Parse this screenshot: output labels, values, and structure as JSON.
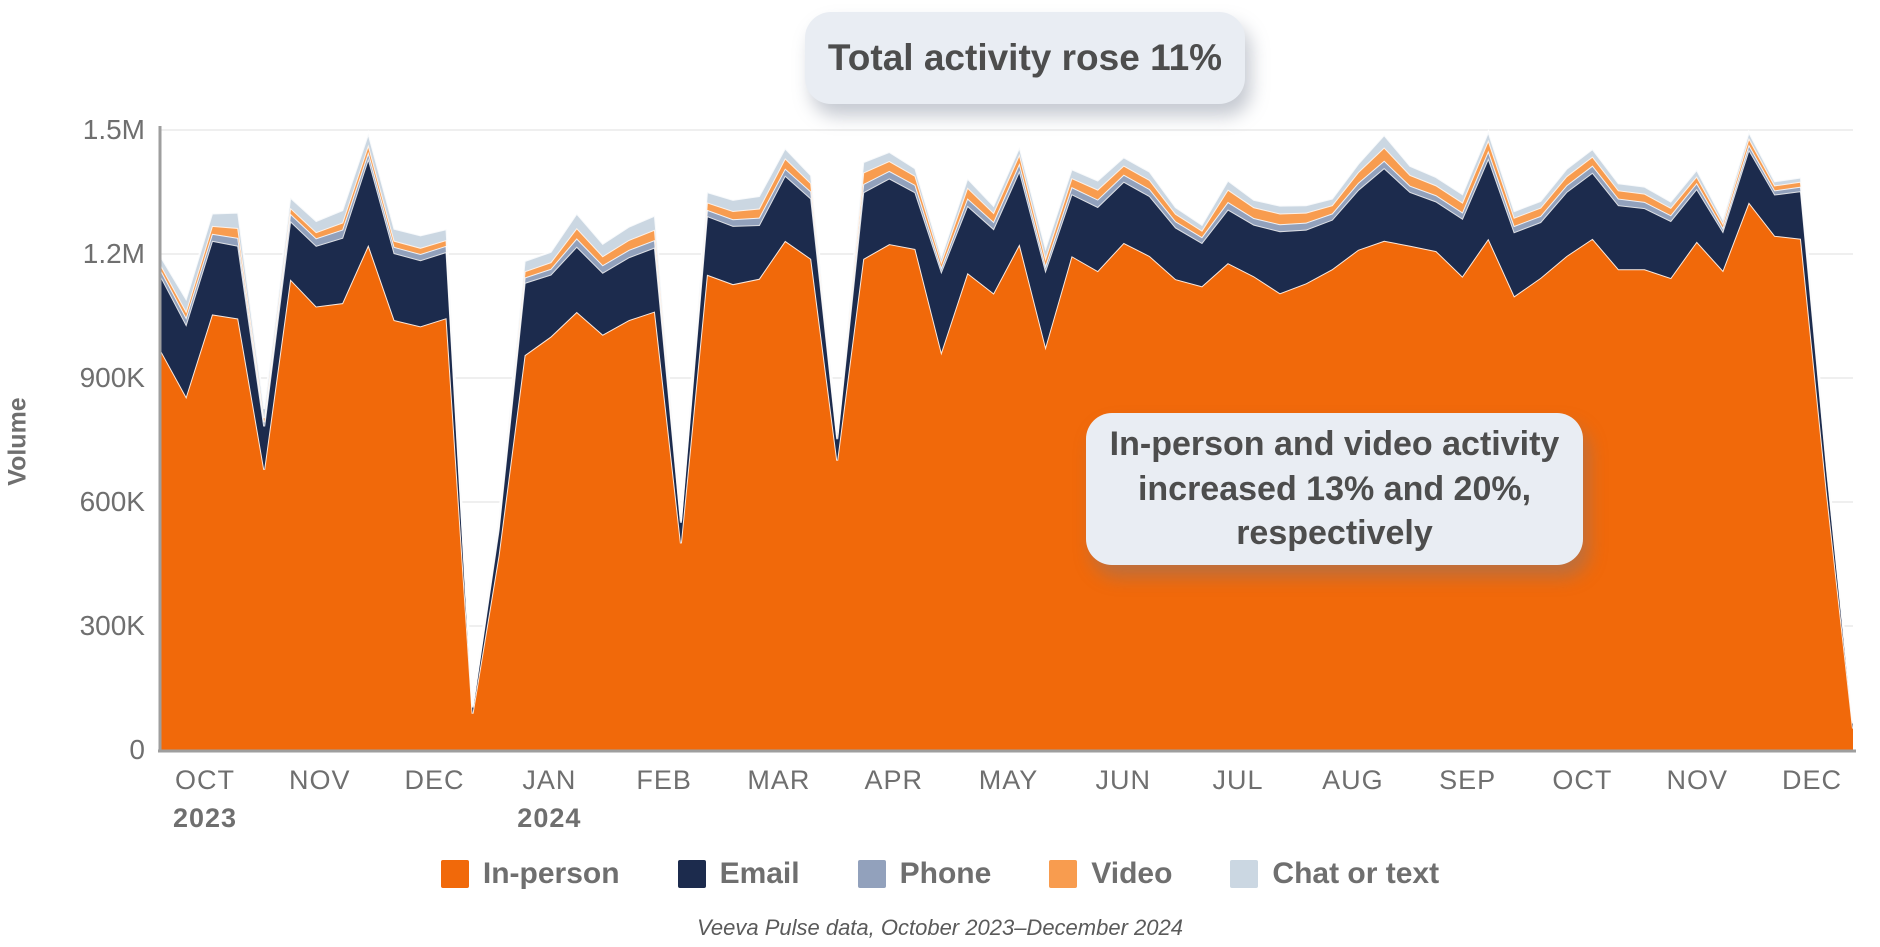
{
  "annotations": {
    "total": "Total activity rose 11%",
    "detail_line1": "In-person and video activity",
    "detail_line2": "increased 13% and 20%, respectively"
  },
  "footer": {
    "source": "Veeva Pulse data, October 2023–December 2024"
  },
  "y_axis": {
    "label": "Volume",
    "ticks": [
      {
        "value": 0,
        "label": "0"
      },
      {
        "value": 300,
        "label": "300K"
      },
      {
        "value": 600,
        "label": "600K"
      },
      {
        "value": 900,
        "label": "900K"
      },
      {
        "value": 1200,
        "label": "1.2M"
      },
      {
        "value": 1500,
        "label": "1.5M"
      }
    ]
  },
  "x_axis": {
    "months": [
      {
        "label": "OCT",
        "year": "2023"
      },
      {
        "label": "NOV"
      },
      {
        "label": "DEC"
      },
      {
        "label": "JAN",
        "year": "2024"
      },
      {
        "label": "FEB"
      },
      {
        "label": "MAR"
      },
      {
        "label": "APR"
      },
      {
        "label": "MAY"
      },
      {
        "label": "JUN"
      },
      {
        "label": "JUL"
      },
      {
        "label": "AUG"
      },
      {
        "label": "SEP"
      },
      {
        "label": "OCT"
      },
      {
        "label": "NOV"
      },
      {
        "label": "DEC"
      }
    ]
  },
  "legend": [
    {
      "name": "In-person",
      "color": "#F1690A"
    },
    {
      "name": "Email",
      "color": "#1C2B4D"
    },
    {
      "name": "Phone",
      "color": "#92A1BC"
    },
    {
      "name": "Video",
      "color": "#F89C4F"
    },
    {
      "name": "Chat or text",
      "color": "#CBD7E2"
    }
  ],
  "chart_data": {
    "type": "area",
    "stacked": true,
    "unit": "thousands",
    "x_description": "66 weekly data points, October 2023 through December 2024",
    "ylim": [
      0,
      1500
    ],
    "grid": "horizontal",
    "legend_position": "bottom",
    "series": [
      {
        "name": "In-person",
        "color": "#F1690A",
        "values": [
          970,
          855,
          1054,
          1044,
          678,
          1139,
          1073,
          1081,
          1222,
          1040,
          1025,
          1045,
          88,
          470,
          955,
          1000,
          1060,
          1005,
          1040,
          1061,
          500,
          1150,
          1127,
          1140,
          1232,
          1188,
          700,
          1188,
          1224,
          1212,
          963,
          1154,
          1105,
          1224,
          976,
          1195,
          1159,
          1227,
          1195,
          1139,
          1122,
          1178,
          1146,
          1105,
          1129,
          1163,
          1210,
          1232,
          1220,
          1207,
          1146,
          1237,
          1098,
          1142,
          1195,
          1237,
          1163,
          1163,
          1142,
          1230,
          1160,
          1325,
          1244,
          1237,
          620,
          52
        ]
      },
      {
        "name": "Email",
        "color": "#1C2B4D",
        "values": [
          180,
          175,
          178,
          176,
          105,
          141,
          147,
          158,
          210,
          162,
          160,
          160,
          15,
          62,
          175,
          150,
          158,
          150,
          152,
          155,
          50,
          142,
          141,
          130,
          158,
          146,
          52,
          161,
          159,
          137,
          195,
          163,
          156,
          178,
          185,
          150,
          155,
          148,
          145,
          125,
          105,
          130,
          125,
          150,
          130,
          120,
          145,
          176,
          130,
          120,
          140,
          195,
          155,
          135,
          155,
          160,
          155,
          148,
          138,
          128,
          95,
          128,
          100,
          115,
          60,
          12
        ]
      },
      {
        "name": "Phone",
        "color": "#92A1BC",
        "values": [
          15,
          17,
          17,
          19,
          10,
          18,
          18,
          20,
          15,
          15,
          15,
          15,
          2,
          8,
          13,
          14,
          20,
          18,
          18,
          18,
          4,
          15,
          16,
          18,
          17,
          17,
          4,
          20,
          18,
          18,
          10,
          18,
          17,
          18,
          12,
          17,
          18,
          17,
          17,
          15,
          14,
          18,
          16,
          17,
          17,
          15,
          17,
          18,
          15,
          15,
          15,
          18,
          15,
          15,
          16,
          17,
          16,
          15,
          14,
          14,
          9,
          12,
          10,
          11,
          5,
          2
        ]
      },
      {
        "name": "Video",
        "color": "#F89C4F",
        "values": [
          12,
          15,
          19,
          24,
          10,
          14,
          15,
          17,
          18,
          15,
          15,
          14,
          2,
          7,
          15,
          16,
          25,
          22,
          24,
          25,
          4,
          18,
          20,
          22,
          25,
          20,
          5,
          28,
          24,
          22,
          14,
          26,
          22,
          22,
          18,
          22,
          24,
          22,
          22,
          18,
          16,
          30,
          26,
          26,
          24,
          20,
          26,
          32,
          26,
          24,
          24,
          26,
          20,
          20,
          22,
          22,
          20,
          20,
          18,
          16,
          11,
          16,
          12,
          12,
          8,
          3
        ]
      },
      {
        "name": "Chat or text",
        "color": "#CBD7E2",
        "values": [
          20,
          30,
          30,
          37,
          22,
          25,
          27,
          30,
          27,
          29,
          30,
          26,
          3,
          10,
          25,
          25,
          35,
          30,
          32,
          34,
          6,
          25,
          27,
          30,
          24,
          19,
          7,
          25,
          22,
          18,
          13,
          22,
          17,
          17,
          24,
          21,
          22,
          20,
          20,
          16,
          14,
          22,
          18,
          19,
          18,
          16,
          20,
          30,
          22,
          20,
          20,
          20,
          16,
          16,
          18,
          18,
          17,
          17,
          15,
          16,
          10,
          14,
          10,
          10,
          7,
          3
        ]
      }
    ]
  },
  "style_colors": {
    "gridline": "#EFEFEF",
    "axis_line": "#9E9E9E",
    "band_divider": "#FFFFFF",
    "callout_bg": "#E9EDF3",
    "callout_text": "#4D4D4D",
    "axis_text": "#6F6F6F"
  }
}
